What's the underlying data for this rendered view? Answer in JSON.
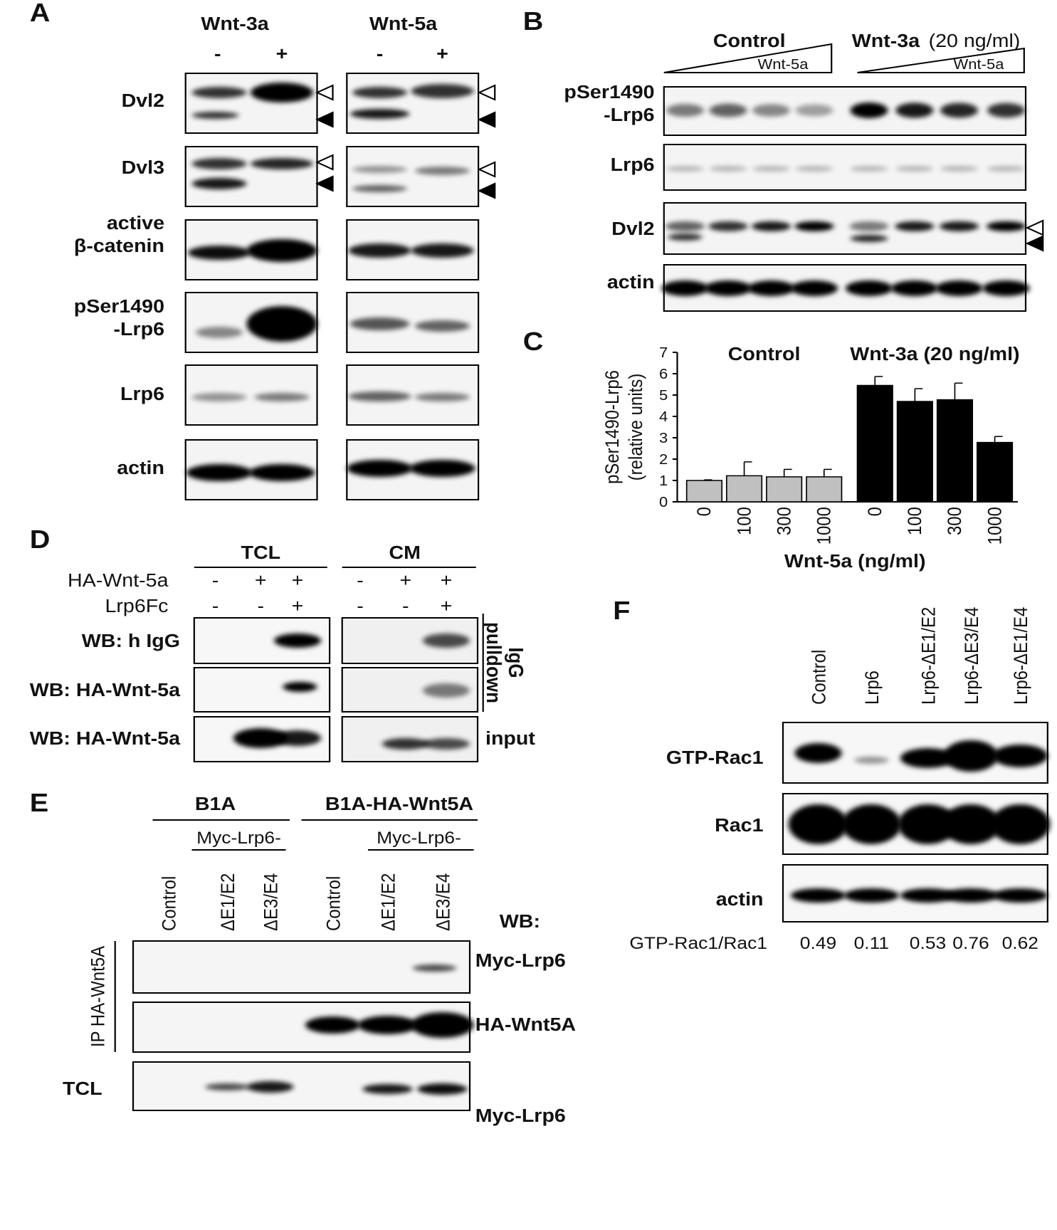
{
  "A": {
    "label": "A",
    "groups": [
      {
        "title": "Wnt-3a",
        "lanes": [
          "-",
          "+"
        ]
      },
      {
        "title": "Wnt-5a",
        "lanes": [
          "-",
          "+"
        ]
      }
    ],
    "rows": [
      [
        "Dvl2"
      ],
      [
        "Dvl3"
      ],
      [
        "active",
        "β-catenin"
      ],
      [
        "pSer1490",
        "-Lrp6"
      ],
      [
        "Lrp6"
      ],
      [
        "actin"
      ]
    ]
  },
  "B": {
    "label": "B",
    "groups": [
      {
        "title": "Control",
        "gradient": "Wnt-5a"
      },
      {
        "title": "Wnt-3a",
        "title_note": "(20 ng/ml)",
        "gradient": "Wnt-5a"
      }
    ],
    "rows": [
      [
        "pSer1490",
        "-Lrp6"
      ],
      [
        "Lrp6"
      ],
      [
        "Dvl2"
      ],
      [
        "actin"
      ]
    ]
  },
  "C": {
    "label": "C",
    "chart_data": {
      "type": "bar",
      "ylabel": [
        "pSer1490-Lrp6",
        "(relative units)"
      ],
      "xlabel": "Wnt-5a (ng/ml)",
      "categories": [
        "0",
        "100",
        "300",
        "1000"
      ],
      "series": [
        {
          "name": "Control",
          "color": "#c0c0c0",
          "values": [
            1.0,
            1.22,
            1.17,
            1.17
          ],
          "errors": [
            0.03,
            0.65,
            0.35,
            0.35
          ]
        },
        {
          "name": "Wnt-3a (20 ng/ml)",
          "color": "#000000",
          "values": [
            5.45,
            4.7,
            4.78,
            2.78
          ],
          "errors": [
            0.42,
            0.6,
            0.78,
            0.28
          ]
        }
      ],
      "ylim": [
        0,
        7
      ],
      "yticks": [
        0,
        1,
        2,
        3,
        4,
        5,
        6,
        7
      ]
    }
  },
  "D": {
    "label": "D",
    "groups": [
      "TCL",
      "CM"
    ],
    "conditions": [
      {
        "name": "HA-Wnt-5a",
        "signs": [
          "-",
          "+",
          "+"
        ]
      },
      {
        "name": "Lrp6Fc",
        "signs": [
          "-",
          "-",
          "+"
        ]
      }
    ],
    "rows": [
      "WB: h IgG",
      "WB: HA-Wnt-5a",
      "WB: HA-Wnt-5a"
    ],
    "pulldown": [
      "IgG",
      "pulldown"
    ],
    "input": "input"
  },
  "E": {
    "label": "E",
    "groups": [
      {
        "title": "B1A",
        "sub": "Myc-Lrp6-",
        "lanes": [
          "Control",
          "ΔE1/E2",
          "ΔE3/E4"
        ]
      },
      {
        "title": "B1A-HA-Wnt5A",
        "sub": "Myc-Lrp6-",
        "lanes": [
          "Control",
          "ΔE1/E2",
          "ΔE3/E4"
        ]
      }
    ],
    "wb": "WB:",
    "rows": [
      "Myc-Lrp6",
      "HA-Wnt5A",
      "Myc-Lrp6"
    ],
    "ip": "IP HA-Wnt5A",
    "tcl": "TCL"
  },
  "F": {
    "label": "F",
    "lanes": [
      "Control",
      "Lrp6",
      "Lrp6-ΔE1/E2",
      "Lrp6-ΔE3/E4",
      "Lrp6-ΔE1/E4"
    ],
    "rows": [
      "GTP-Rac1",
      "Rac1",
      "actin"
    ],
    "ratio_label": "GTP-Rac1/Rac1",
    "ratios": [
      0.49,
      0.11,
      0.53,
      0.76,
      0.62
    ]
  }
}
